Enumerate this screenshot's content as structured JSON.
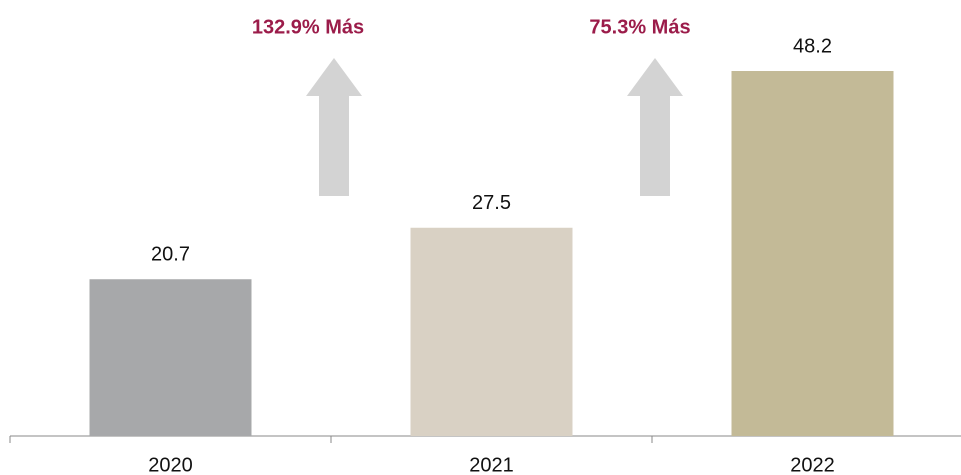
{
  "chart_data": {
    "type": "bar",
    "categories": [
      "2020",
      "2021",
      "2022"
    ],
    "values": [
      20.7,
      27.5,
      48.2
    ],
    "colors": [
      "#a7a8aa",
      "#d9d1c4",
      "#c3ba97"
    ],
    "annotations": [
      {
        "text": "132.9% Más"
      },
      {
        "text": "75.3% Más"
      }
    ],
    "annotation_color": "#9b1c4a"
  }
}
